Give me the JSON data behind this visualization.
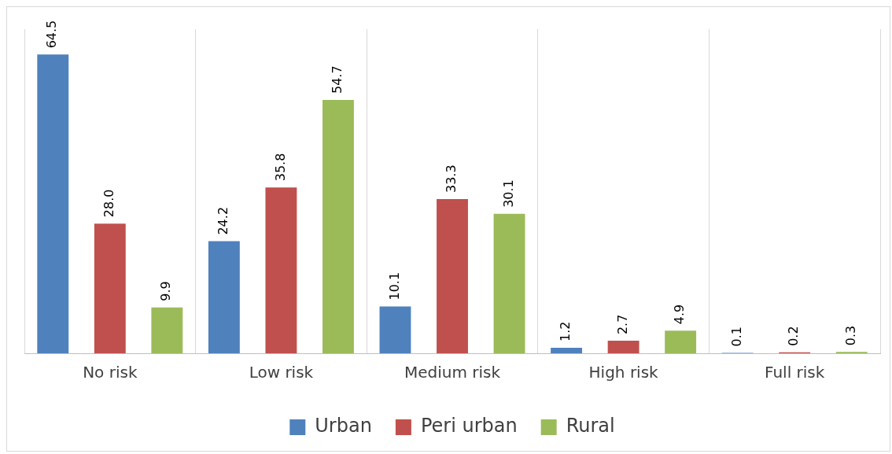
{
  "chart_data": {
    "type": "bar",
    "categories": [
      "No risk",
      "Low risk",
      "Medium risk",
      "High risk",
      "Full risk"
    ],
    "series": [
      {
        "name": "Urban",
        "color": "#4f81bd",
        "values": [
          64.5,
          24.2,
          10.1,
          1.2,
          0.1
        ],
        "value_labels": [
          "64.5",
          "24.2",
          "10.1",
          "1.2",
          "0.1"
        ]
      },
      {
        "name": "Peri urban",
        "color": "#c0504d",
        "values": [
          28.0,
          35.8,
          33.3,
          2.7,
          0.2
        ],
        "value_labels": [
          "28.0",
          "35.8",
          "33.3",
          "2.7",
          "0.2"
        ]
      },
      {
        "name": "Rural",
        "color": "#9bbb59",
        "values": [
          9.9,
          54.7,
          30.1,
          4.9,
          0.3
        ],
        "value_labels": [
          "9.9",
          "54.7",
          "30.1",
          "4.9",
          "0.3"
        ]
      }
    ],
    "grid": "x",
    "legend": "bottom"
  }
}
